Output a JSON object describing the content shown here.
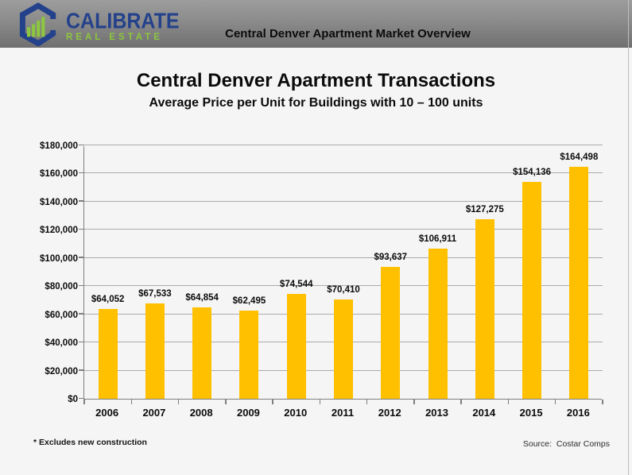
{
  "header": {
    "title": "Central Denver Apartment Market Overview",
    "logo": {
      "brand": "CALIBRATE",
      "sub": "REAL ESTATE",
      "navy": "#24418B",
      "green": "#8DC63F"
    }
  },
  "chart_data": {
    "type": "bar",
    "title": "Central Denver Apartment Transactions",
    "subtitle": "Average Price per Unit for Buildings with 10 – 100 units",
    "categories": [
      "2006",
      "2007",
      "2008",
      "2009",
      "2010",
      "2011",
      "2012",
      "2013",
      "2014",
      "2015",
      "2016"
    ],
    "values": [
      64052,
      67533,
      64854,
      62495,
      74544,
      70410,
      93637,
      106911,
      127275,
      154136,
      164498
    ],
    "data_labels": [
      "$64,052",
      "$67,533",
      "$64,854",
      "$62,495",
      "$74,544",
      "$70,410",
      "$93,637",
      "$106,911",
      "$127,275",
      "$154,136",
      "$164,498"
    ],
    "ytick_labels": [
      "$0",
      "$20,000",
      "$40,000",
      "$60,000",
      "$80,000",
      "$100,000",
      "$120,000",
      "$140,000",
      "$160,000",
      "$180,000"
    ],
    "ylim": [
      0,
      180000
    ],
    "ytick_step": 20000,
    "bar_color": "#FFC000",
    "grid": true,
    "legend_position": "none",
    "xlabel": "",
    "ylabel": ""
  },
  "footer": {
    "note": "* Excludes new construction",
    "source": "Source:  Costar Comps"
  }
}
